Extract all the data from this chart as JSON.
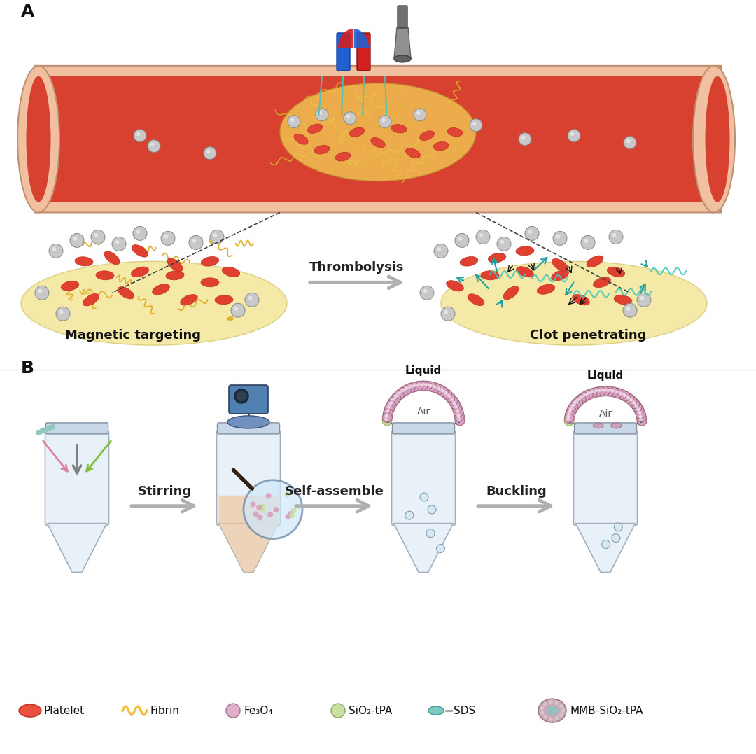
{
  "title_A": "A",
  "title_B": "B",
  "label_magnetic": "Magnetic targeting",
  "label_clot": "Clot penetrating",
  "label_thrombolysis": "Thrombolysis",
  "label_stirring": "Stirring",
  "label_selfassemble": "Self-assemble",
  "label_buckling": "Buckling",
  "label_liquid1": "Liquid",
  "label_air1": "Air",
  "label_liquid2": "Liquid",
  "label_air2": "Air",
  "legend_items": [
    "Platelet",
    "Fibrin",
    "Fe₃O₄",
    "SiO₂-tPA",
    "SDS",
    "MMB-SiO₂-tPA"
  ],
  "legend_colors": [
    "#E8614A",
    "#F5C842",
    "#E8B4C8",
    "#D4E8A0",
    "#7EC8C8",
    "#C8A0B4"
  ],
  "bg_color": "#ffffff",
  "arrow_color": "#C0C0C0",
  "vessel_outer": "#F0C0A0",
  "vessel_inner": "#D84030",
  "thrombus_color": "#F0C050",
  "rbc_color": "#E04535",
  "nanoparticle_color": "#C8C8C8",
  "handle_color": "#302010",
  "fontsize_label": 13,
  "fontsize_title": 18,
  "fontsize_legend": 11
}
